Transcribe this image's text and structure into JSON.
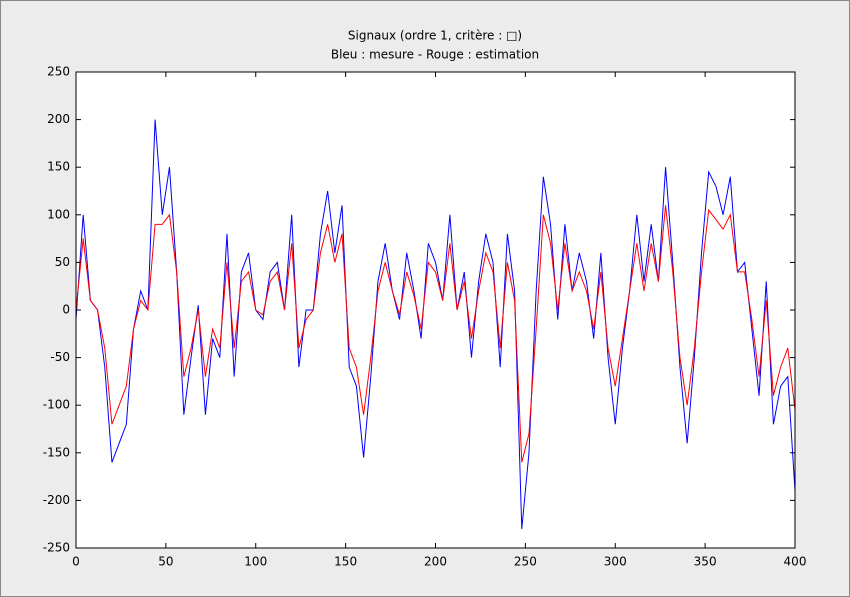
{
  "chart_data": {
    "type": "line",
    "title": "Signaux (ordre 1, critère : □)",
    "subtitle": "Bleu : mesure - Rouge : estimation",
    "x": [
      0,
      4,
      8,
      12,
      16,
      20,
      24,
      28,
      32,
      36,
      40,
      44,
      48,
      52,
      56,
      60,
      64,
      68,
      72,
      76,
      80,
      84,
      88,
      92,
      96,
      100,
      104,
      108,
      112,
      116,
      120,
      124,
      128,
      132,
      136,
      140,
      144,
      148,
      152,
      156,
      160,
      164,
      168,
      172,
      176,
      180,
      184,
      188,
      192,
      196,
      200,
      204,
      208,
      212,
      216,
      220,
      224,
      228,
      232,
      236,
      240,
      244,
      248,
      252,
      256,
      260,
      264,
      268,
      272,
      276,
      280,
      284,
      288,
      292,
      296,
      300,
      304,
      308,
      312,
      316,
      320,
      324,
      328,
      332,
      336,
      340,
      344,
      348,
      352,
      356,
      360,
      364,
      368,
      372,
      376,
      380,
      384,
      388,
      392,
      396,
      400
    ],
    "series": [
      {
        "color": "#0000ff",
        "values": [
          -10,
          100,
          10,
          0,
          -60,
          -160,
          -140,
          -120,
          -20,
          20,
          0,
          200,
          100,
          150,
          40,
          -110,
          -50,
          5,
          -110,
          -30,
          -50,
          80,
          -70,
          40,
          60,
          0,
          -10,
          40,
          50,
          0,
          100,
          -60,
          0,
          0,
          80,
          125,
          60,
          110,
          -60,
          -80,
          -155,
          -70,
          30,
          70,
          20,
          -10,
          60,
          20,
          -30,
          70,
          50,
          10,
          100,
          0,
          40,
          -50,
          30,
          80,
          50,
          -60,
          80,
          20,
          -230,
          -150,
          20,
          140,
          90,
          -10,
          90,
          20,
          60,
          30,
          -30,
          60,
          -50,
          -120,
          -40,
          20,
          100,
          30,
          90,
          30,
          150,
          50,
          -60,
          -140,
          -50,
          60,
          145,
          130,
          100,
          140,
          40,
          50,
          -20,
          -90,
          30,
          -120,
          -80,
          -70,
          -190
        ]
      },
      {
        "color": "#ff0000",
        "values": [
          0,
          75,
          10,
          0,
          -40,
          -120,
          -100,
          -80,
          -20,
          10,
          0,
          90,
          90,
          100,
          40,
          -70,
          -40,
          0,
          -70,
          -20,
          -40,
          50,
          -40,
          30,
          40,
          0,
          -5,
          30,
          40,
          0,
          70,
          -40,
          -10,
          0,
          60,
          90,
          50,
          80,
          -40,
          -60,
          -110,
          -50,
          20,
          50,
          20,
          -5,
          40,
          15,
          -20,
          50,
          40,
          10,
          70,
          0,
          30,
          -30,
          20,
          60,
          40,
          -40,
          50,
          10,
          -160,
          -130,
          -20,
          100,
          70,
          0,
          70,
          20,
          40,
          20,
          -20,
          40,
          -40,
          -80,
          -30,
          20,
          70,
          20,
          70,
          30,
          110,
          40,
          -50,
          -100,
          -40,
          40,
          105,
          95,
          85,
          100,
          40,
          40,
          -10,
          -70,
          10,
          -90,
          -60,
          -40,
          -105
        ]
      }
    ],
    "xlim": [
      0,
      400
    ],
    "xticks": [
      0,
      50,
      100,
      150,
      200,
      250,
      300,
      350,
      400
    ],
    "ylim": [
      -250,
      250
    ],
    "yticks": [
      -250,
      -200,
      -150,
      -100,
      -50,
      0,
      50,
      100,
      150,
      200,
      250
    ]
  }
}
